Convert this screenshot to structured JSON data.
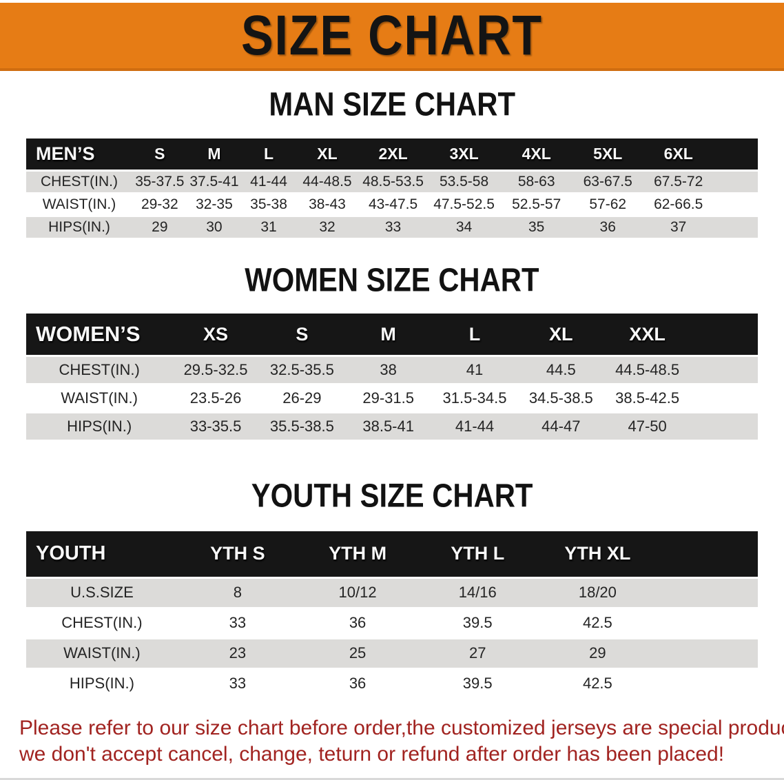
{
  "banner": {
    "title": "SIZE CHART"
  },
  "sections": [
    {
      "title": "MAN SIZE CHART",
      "header_label": "MEN’S",
      "columns": [
        "S",
        "M",
        "L",
        "XL",
        "2XL",
        "3XL",
        "4XL",
        "5XL",
        "6XL"
      ],
      "rows": [
        {
          "label": "CHEST(IN.)",
          "values": [
            "35-37.5",
            "37.5-41",
            "41-44",
            "44-48.5",
            "48.5-53.5",
            "53.5-58",
            "58-63",
            "63-67.5",
            "67.5-72"
          ]
        },
        {
          "label": "WAIST(IN.)",
          "values": [
            "29-32",
            "32-35",
            "35-38",
            "38-43",
            "43-47.5",
            "47.5-52.5",
            "52.5-57",
            "57-62",
            "62-66.5"
          ]
        },
        {
          "label": "HIPS(IN.)",
          "values": [
            "29",
            "30",
            "31",
            "32",
            "33",
            "34",
            "35",
            "36",
            "37"
          ]
        }
      ]
    },
    {
      "title": "WOMEN SIZE CHART",
      "header_label": "WOMEN’S",
      "columns": [
        "XS",
        "S",
        "M",
        "L",
        "XL",
        "XXL"
      ],
      "rows": [
        {
          "label": "CHEST(IN.)",
          "values": [
            "29.5-32.5",
            "32.5-35.5",
            "38",
            "41",
            "44.5",
            "44.5-48.5"
          ]
        },
        {
          "label": "WAIST(IN.)",
          "values": [
            "23.5-26",
            "26-29",
            "29-31.5",
            "31.5-34.5",
            "34.5-38.5",
            "38.5-42.5"
          ]
        },
        {
          "label": "HIPS(IN.)",
          "values": [
            "33-35.5",
            "35.5-38.5",
            "38.5-41",
            "41-44",
            "44-47",
            "47-50"
          ]
        }
      ]
    },
    {
      "title": "YOUTH SIZE CHART",
      "header_label": "YOUTH",
      "columns": [
        "YTH S",
        "YTH M",
        "YTH L",
        "YTH XL"
      ],
      "rows": [
        {
          "label": "U.S.SIZE",
          "values": [
            "8",
            "10/12",
            "14/16",
            "18/20"
          ]
        },
        {
          "label": "CHEST(IN.)",
          "values": [
            "33",
            "36",
            "39.5",
            "42.5"
          ]
        },
        {
          "label": "WAIST(IN.)",
          "values": [
            "23",
            "25",
            "27",
            "29"
          ]
        },
        {
          "label": "HIPS(IN.)",
          "values": [
            "33",
            "36",
            "39.5",
            "42.5"
          ]
        }
      ]
    }
  ],
  "footer": {
    "lines": [
      "Please refer to our size chart before order,the customized jerseys are special products,",
      "we don't accept cancel, change, teturn or refund after order has been placed!"
    ]
  },
  "colors": {
    "banner_orange": "#e67c15",
    "header_black": "#161616",
    "row_gray": "#dcdbd9",
    "footer_red": "#a12320"
  }
}
